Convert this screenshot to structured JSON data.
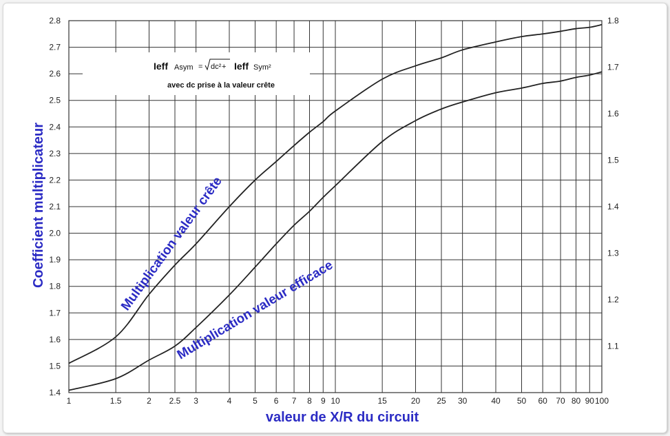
{
  "chart_data": {
    "type": "line",
    "xscale": "log",
    "xlim": [
      1,
      100
    ],
    "ylim": [
      1.4,
      2.8
    ],
    "y2lim": [
      1.0,
      1.8
    ],
    "grid": true,
    "xlabel": "valeur de X/R du circuit",
    "ylabel": "Coefficient multiplicateur",
    "xticks": [
      "1",
      "1.5",
      "2",
      "2.5",
      "3",
      "4",
      "5",
      "6",
      "7",
      "8",
      "9",
      "10",
      "15",
      "20",
      "25",
      "30",
      "40",
      "50",
      "60",
      "70",
      "80",
      "90",
      "100"
    ],
    "yticks": [
      "1.4",
      "1.5",
      "1.6",
      "1.7",
      "1.8",
      "1.9",
      "2.0",
      "2.1",
      "2.2",
      "2.3",
      "2.4",
      "2.5",
      "2.6",
      "2.7",
      "2.8"
    ],
    "y2ticks": [
      "1.1",
      "1.2",
      "1.3",
      "1.4",
      "1.5",
      "1.6",
      "1.7",
      "1.8"
    ],
    "series": [
      {
        "name": "Multiplication valeur crête",
        "axis": "left",
        "x": [
          1,
          1.5,
          2,
          2.5,
          3,
          4,
          5,
          6,
          7,
          8,
          9,
          10,
          15,
          20,
          25,
          30,
          40,
          50,
          60,
          70,
          80,
          90,
          100
        ],
        "y": [
          1.51,
          1.61,
          1.77,
          1.88,
          1.96,
          2.1,
          2.2,
          2.27,
          2.33,
          2.38,
          2.42,
          2.46,
          2.58,
          2.63,
          2.66,
          2.69,
          2.72,
          2.74,
          2.75,
          2.76,
          2.77,
          2.775,
          2.785
        ]
      },
      {
        "name": "Multiplication valeur efficace",
        "axis": "right",
        "x": [
          1,
          1.5,
          2,
          2.5,
          3,
          4,
          5,
          6,
          7,
          8,
          9,
          10,
          15,
          20,
          25,
          30,
          40,
          50,
          60,
          70,
          80,
          90,
          100
        ],
        "y": [
          1.005,
          1.03,
          1.07,
          1.1,
          1.14,
          1.21,
          1.27,
          1.32,
          1.36,
          1.39,
          1.42,
          1.445,
          1.54,
          1.585,
          1.61,
          1.625,
          1.645,
          1.655,
          1.665,
          1.67,
          1.678,
          1.683,
          1.69
        ]
      }
    ],
    "annotation": {
      "formula_lhs": "Ieff",
      "formula_lhs_sub": "Asym",
      "formula_eq": "=",
      "formula_dc": "dc²",
      "formula_plus": "+",
      "formula_rhs": "Ieff",
      "formula_rhs_sub": "Sym²",
      "note": "avec dc prise à la valeur crête"
    },
    "colors": {
      "curve": "#222222",
      "grid": "#333333",
      "label": "#2b2bc4"
    }
  }
}
